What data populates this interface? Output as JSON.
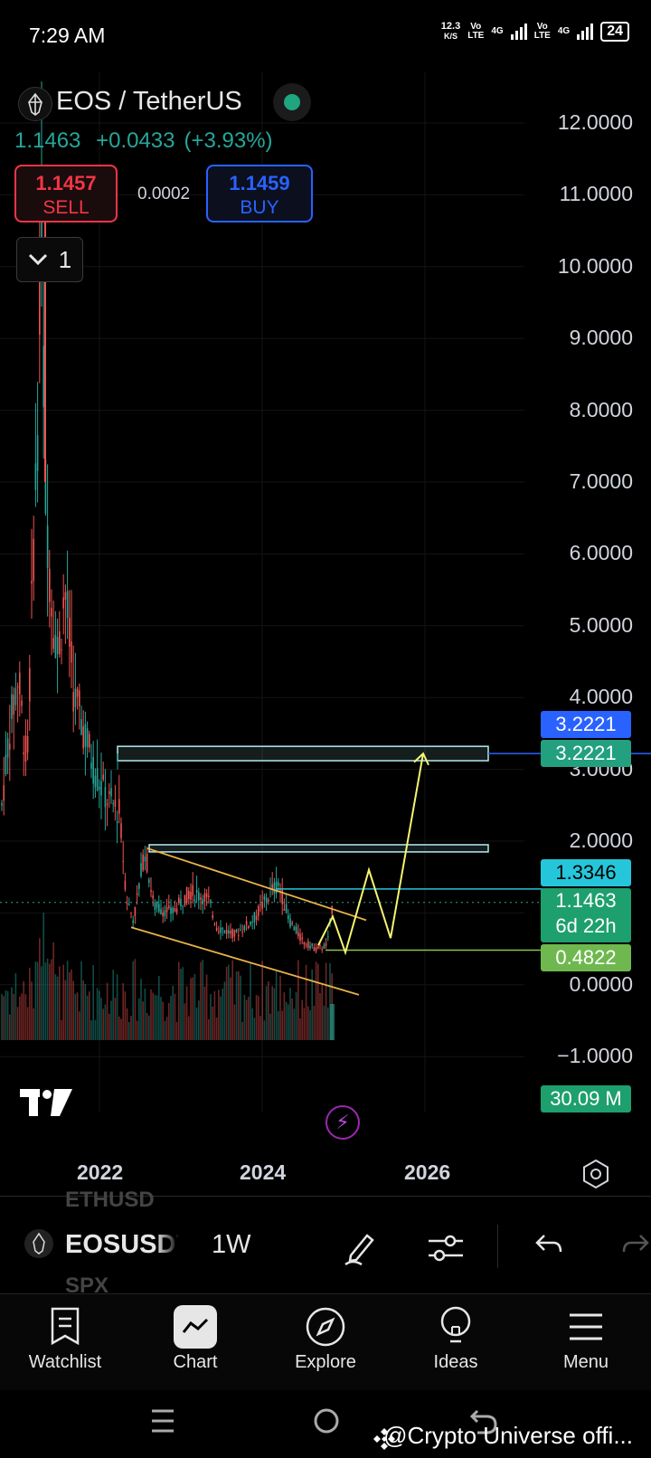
{
  "status_bar": {
    "time": "7:29 AM",
    "speed": "12.3",
    "speed_unit": "K/S",
    "net1_top": "Vo",
    "net1_bottom": "LTE",
    "net2": "4G",
    "net3_top": "Vo",
    "net3_bottom": "LTE",
    "net4": "4G",
    "battery": "24"
  },
  "header": {
    "symbol_title": "EOS / TetherUS",
    "last_price": "1.1463",
    "change": "+0.0433",
    "change_pct": "(+3.93%)",
    "sell_price": "1.1457",
    "sell_label": "SELL",
    "spread": "0.0002",
    "buy_price": "1.1459",
    "buy_label": "BUY",
    "collapse_count": "1"
  },
  "price_scale": {
    "labels": [
      "12.0000",
      "11.0000",
      "10.0000",
      "9.0000",
      "8.0000",
      "7.0000",
      "6.0000",
      "5.0000",
      "4.0000",
      "3.0000",
      "2.0000",
      "0.0000",
      "−1.0000"
    ],
    "tags": [
      {
        "value": "3.2221",
        "color": "#2962ff"
      },
      {
        "value": "3.2221",
        "color": "#22a07f"
      },
      {
        "value": "1.3346",
        "color": "#26c6da"
      },
      {
        "value": "1.1463",
        "subvalue": "6d 22h",
        "color": "#1e9f6e"
      },
      {
        "value": "0.4822",
        "color": "#6fb84f"
      },
      {
        "value": "30.09 M",
        "color": "#1e9f6e"
      }
    ]
  },
  "time_scale": {
    "labels": [
      "2022",
      "2024",
      "2026"
    ]
  },
  "toolbar": {
    "ghost_above": "ETHUSD",
    "ticker": "EOSUSDT",
    "ghost_below": "SPX",
    "interval": "1W"
  },
  "bottom_nav": [
    {
      "label": "Watchlist",
      "icon": "watchlist-icon"
    },
    {
      "label": "Chart",
      "icon": "chart-icon",
      "active": true
    },
    {
      "label": "Explore",
      "icon": "compass-icon"
    },
    {
      "label": "Ideas",
      "icon": "lightbulb-icon"
    },
    {
      "label": "Menu",
      "icon": "menu-icon"
    }
  ],
  "watermark": "@Crypto Universe offi...",
  "chart_data": {
    "type": "candlestick",
    "symbol": "EOSUSDT",
    "interval": "1W",
    "y_range": [
      -1.0,
      12.0
    ],
    "y_ticks": [
      12,
      11,
      10,
      9,
      8,
      7,
      6,
      5,
      4,
      3,
      2,
      0,
      -1
    ],
    "x_ticks": [
      "2022",
      "2024",
      "2026"
    ],
    "last_price": 1.1463,
    "horizontal_levels": [
      3.2221,
      1.3346,
      0.4822
    ],
    "projection_path": [
      1.1463,
      1.8,
      0.9,
      3.2221
    ],
    "volume_last": "30.09 M",
    "colors": {
      "up": "#26a69a",
      "down": "#ef5350",
      "projection": "#f5f571",
      "channel": "#e8b24a",
      "zone": "#b2ebf2"
    }
  }
}
